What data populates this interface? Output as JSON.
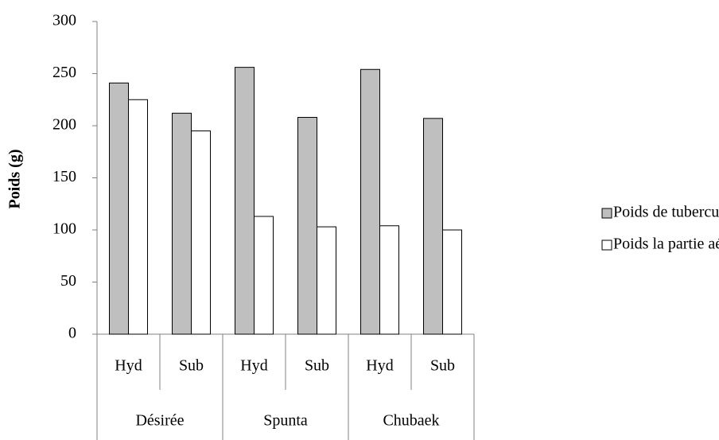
{
  "chart_data": {
    "type": "bar",
    "y_axis_label": "Poids (g)",
    "categories": [
      "Hyd",
      "Sub",
      "Hyd",
      "Sub",
      "Hyd",
      "Sub"
    ],
    "category_groups": [
      "Désirée",
      "Spunta",
      "Chubaek"
    ],
    "series": [
      {
        "name": "Poids de tubercules",
        "color": "#bfbfbf",
        "values": [
          241,
          212,
          256,
          208,
          254,
          207
        ]
      },
      {
        "name": "Poids la partie aérienne",
        "color": "#ffffff",
        "values": [
          225,
          195,
          113,
          103,
          104,
          100
        ]
      }
    ],
    "ylim": [
      0,
      300
    ],
    "yticks": [
      0,
      50,
      100,
      150,
      200,
      250,
      300
    ],
    "grid": false,
    "legend": "right"
  }
}
